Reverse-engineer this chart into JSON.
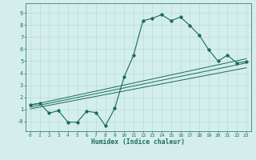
{
  "bg_color": "#d4eeeb",
  "line_color": "#1a6b5a",
  "grid_color": "#b8ddd8",
  "xlabel": "Humidex (Indice chaleur)",
  "xlim": [
    -0.5,
    23.5
  ],
  "ylim": [
    -0.8,
    9.8
  ],
  "xticks": [
    0,
    1,
    2,
    3,
    4,
    5,
    6,
    7,
    8,
    9,
    10,
    11,
    12,
    13,
    14,
    15,
    16,
    17,
    18,
    19,
    20,
    21,
    22,
    23
  ],
  "yticks": [
    0,
    1,
    2,
    3,
    4,
    5,
    6,
    7,
    8,
    9
  ],
  "ytick_labels": [
    "-0",
    "1",
    "2",
    "3",
    "4",
    "5",
    "6",
    "7",
    "8",
    "9"
  ],
  "curve_x": [
    0,
    1,
    2,
    3,
    4,
    5,
    6,
    7,
    8,
    9,
    10,
    11,
    12,
    13,
    14,
    15,
    16,
    17,
    18,
    19,
    20,
    21,
    22,
    23
  ],
  "curve_y": [
    1.4,
    1.5,
    0.7,
    0.9,
    -0.05,
    -0.05,
    0.85,
    0.75,
    -0.35,
    1.1,
    3.7,
    5.5,
    8.35,
    8.55,
    8.85,
    8.35,
    8.65,
    7.95,
    7.15,
    5.95,
    5.0,
    5.5,
    4.85,
    4.95
  ],
  "line1_x": [
    0,
    23
  ],
  "line1_y": [
    1.35,
    5.2
  ],
  "line2_x": [
    0,
    23
  ],
  "line2_y": [
    1.2,
    4.85
  ],
  "line3_x": [
    0,
    23
  ],
  "line3_y": [
    1.05,
    4.45
  ]
}
